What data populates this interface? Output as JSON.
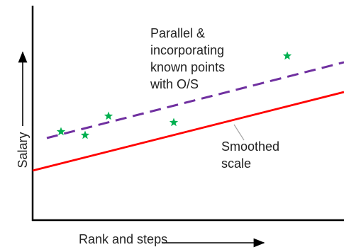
{
  "diagram": {
    "x_axis_title": "Rank and steps",
    "y_axis_title": "Salary",
    "annotations": {
      "parallel": "Parallel &\nincorporating\nknown points\nwith O/S",
      "smoothed": "Smoothed\nscale"
    },
    "colors": {
      "axis": "#000000",
      "smoothed_line": "#ff0000",
      "parallel_line": "#7030a0",
      "known_points": "#00b050"
    },
    "series": [
      {
        "name": "Smoothed scale",
        "style": "solid"
      },
      {
        "name": "Parallel & incorporating known points with O/S",
        "style": "dashed"
      }
    ],
    "known_point_marker": "star"
  }
}
